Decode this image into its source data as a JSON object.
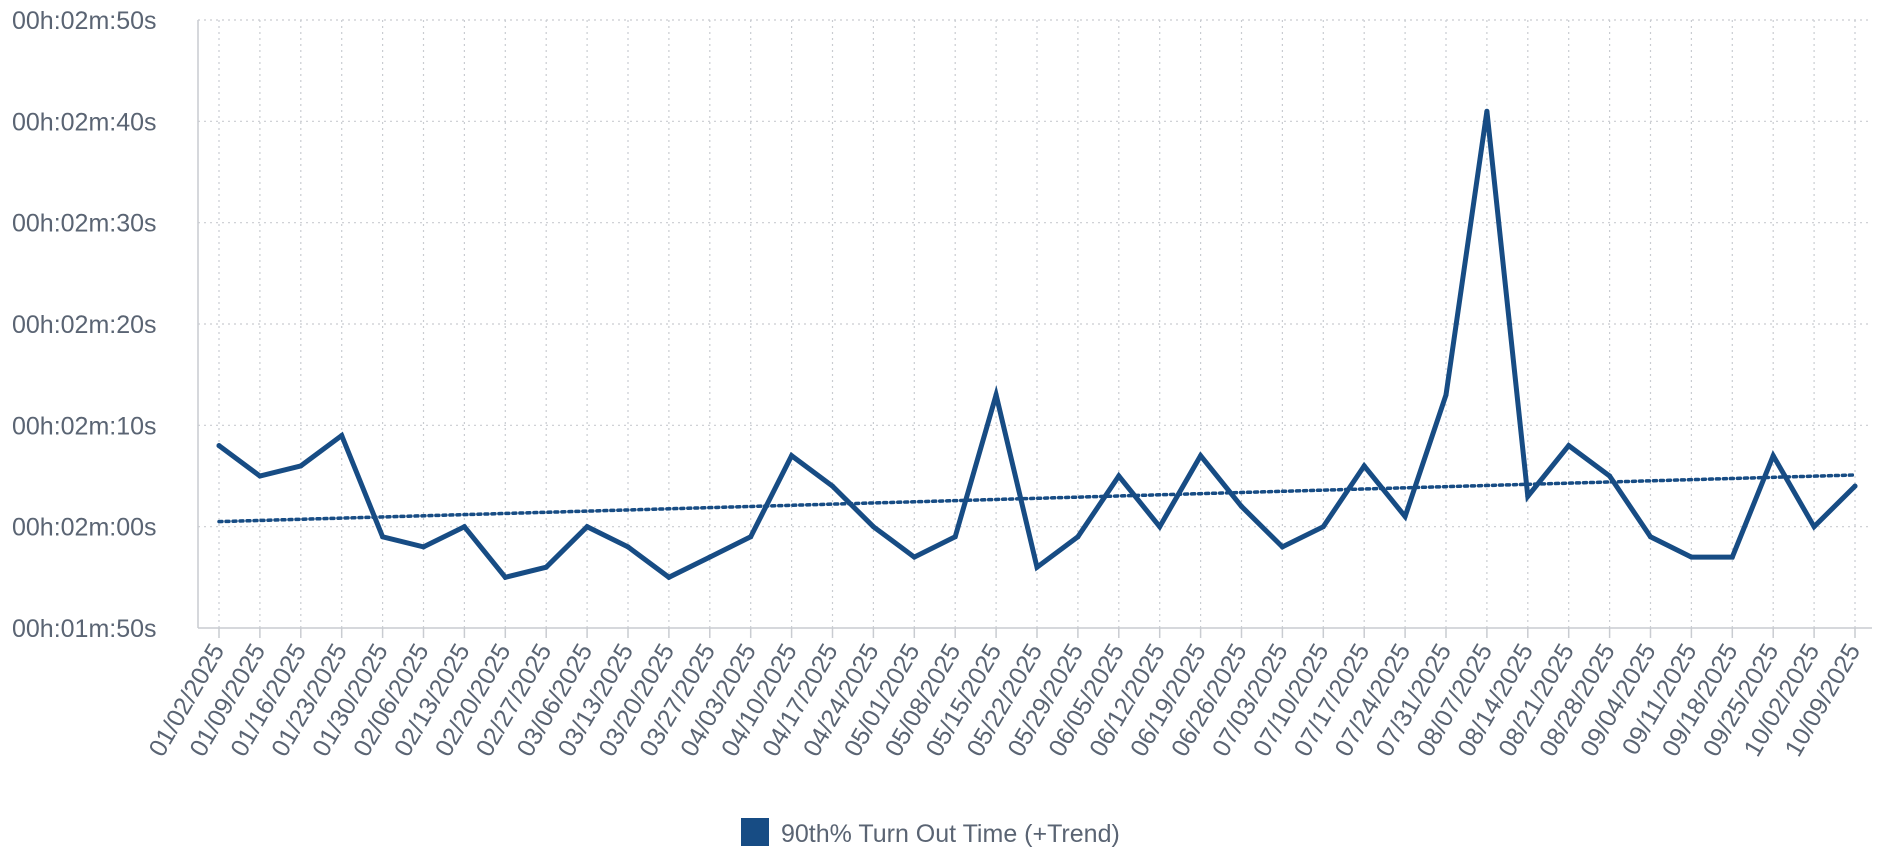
{
  "chart_data": {
    "type": "line",
    "title": "",
    "xlabel": "",
    "ylabel": "",
    "y_unit": "seconds",
    "ylim": [
      110,
      170
    ],
    "y_ticks": [
      {
        "value": 110,
        "label": "00h:01m:50s"
      },
      {
        "value": 120,
        "label": "00h:02m:00s"
      },
      {
        "value": 130,
        "label": "00h:02m:10s"
      },
      {
        "value": 140,
        "label": "00h:02m:20s"
      },
      {
        "value": 150,
        "label": "00h:02m:30s"
      },
      {
        "value": 160,
        "label": "00h:02m:40s"
      },
      {
        "value": 170,
        "label": "00h:02m:50s"
      }
    ],
    "categories": [
      "01/02/2025",
      "01/09/2025",
      "01/16/2025",
      "01/23/2025",
      "01/30/2025",
      "02/06/2025",
      "02/13/2025",
      "02/20/2025",
      "02/27/2025",
      "03/06/2025",
      "03/13/2025",
      "03/20/2025",
      "03/27/2025",
      "04/03/2025",
      "04/10/2025",
      "04/17/2025",
      "04/24/2025",
      "05/01/2025",
      "05/08/2025",
      "05/15/2025",
      "05/22/2025",
      "05/29/2025",
      "06/05/2025",
      "06/12/2025",
      "06/19/2025",
      "06/26/2025",
      "07/03/2025",
      "07/10/2025",
      "07/17/2025",
      "07/24/2025",
      "07/31/2025",
      "08/07/2025",
      "08/14/2025",
      "08/21/2025",
      "08/28/2025",
      "09/04/2025",
      "09/11/2025",
      "09/18/2025",
      "09/25/2025",
      "10/02/2025",
      "10/09/2025"
    ],
    "series": [
      {
        "name": "90th% Turn Out Time (+Trend)",
        "color": "#174c84",
        "values": [
          128,
          125,
          126,
          129,
          119,
          118,
          120,
          115,
          116,
          120,
          118,
          115,
          117,
          119,
          127,
          124,
          120,
          117,
          119,
          133,
          116,
          119,
          125,
          120,
          127,
          122,
          118,
          120,
          126,
          121,
          133,
          161,
          123,
          128,
          125,
          119,
          117,
          117,
          127,
          120,
          124
        ]
      }
    ],
    "trend": {
      "start": 120.5,
      "end": 125.1,
      "style": "dotted",
      "color": "#174c84"
    },
    "grid": true,
    "grid_style": "dotted",
    "legend": {
      "position": "bottom-center",
      "label": "90th% Turn Out Time (+Trend)",
      "color": "#174c84"
    }
  }
}
